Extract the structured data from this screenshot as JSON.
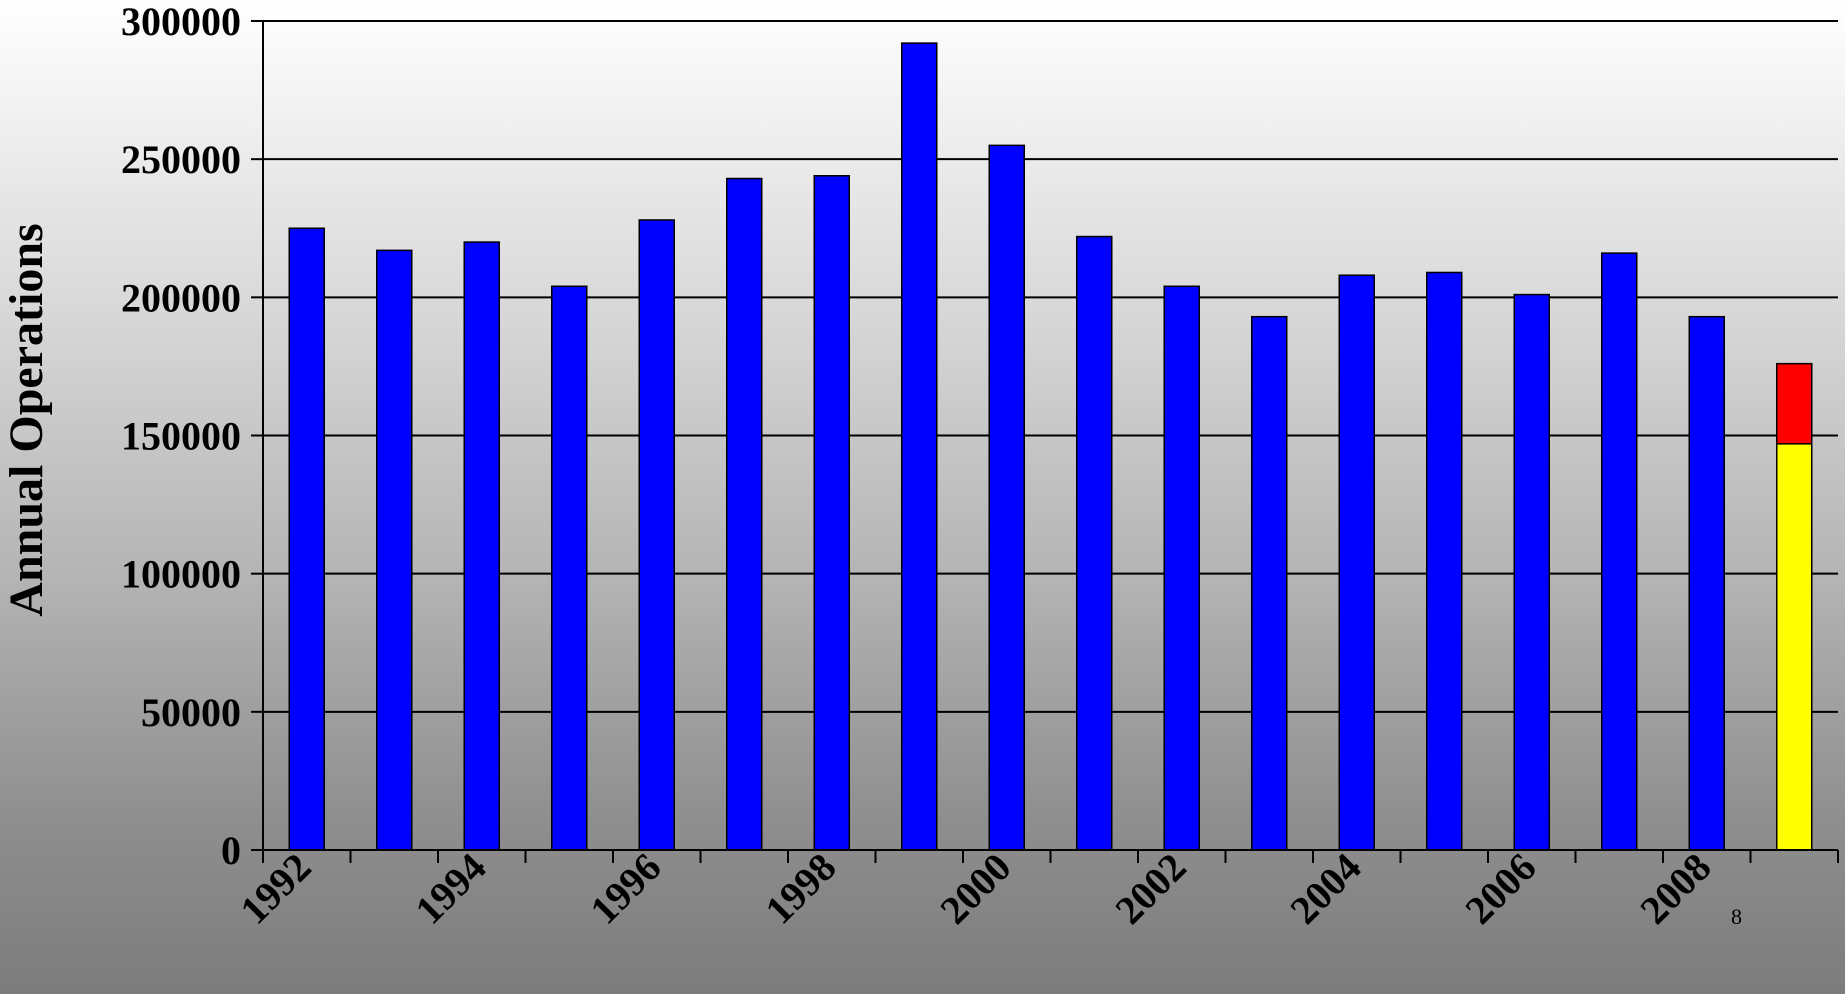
{
  "chart_data": {
    "type": "bar",
    "stacked": true,
    "ylabel": "Annual Operations",
    "ylim": [
      0,
      300000
    ],
    "yticks": [
      0,
      50000,
      100000,
      150000,
      200000,
      250000,
      300000
    ],
    "ytick_labels": [
      "0",
      "50000",
      "100000",
      "150000",
      "200000",
      "250000",
      "300000"
    ],
    "x_tick_labels": [
      "1992",
      "1994",
      "1996",
      "1998",
      "2000",
      "2002",
      "2004",
      "2006",
      "2008"
    ],
    "categories": [
      "1992",
      "1993",
      "1994",
      "1995",
      "1996",
      "1997",
      "1998",
      "1999",
      "2000",
      "2001",
      "2002",
      "2003",
      "2004",
      "2005",
      "2006",
      "2007",
      "2008",
      "2009"
    ],
    "series": [
      {
        "color": "#0000ff",
        "values": [
          225000,
          217000,
          220000,
          204000,
          228000,
          243000,
          244000,
          292000,
          255000,
          222000,
          204000,
          193000,
          208000,
          209000,
          201000,
          216000,
          193000,
          0
        ]
      },
      {
        "color": "#ffff00",
        "values": [
          0,
          0,
          0,
          0,
          0,
          0,
          0,
          0,
          0,
          0,
          0,
          0,
          0,
          0,
          0,
          0,
          0,
          147000
        ]
      },
      {
        "color": "#ff0000",
        "values": [
          0,
          0,
          0,
          0,
          0,
          0,
          0,
          0,
          0,
          0,
          0,
          0,
          0,
          0,
          0,
          0,
          0,
          29000
        ]
      }
    ],
    "grid": true,
    "legend": "none"
  },
  "page_number": "8"
}
